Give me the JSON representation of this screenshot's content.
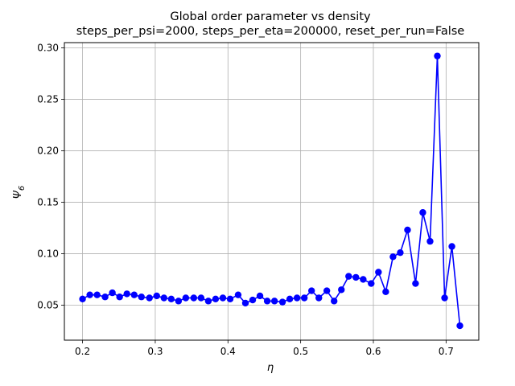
{
  "chart_data": {
    "type": "line",
    "title": "Global order parameter vs density",
    "subtitle": "steps_per_psi=2000, steps_per_eta=200000, reset_per_run=False",
    "xlabel": "η",
    "ylabel": "Ψ",
    "ylabel_subscript": "6",
    "xlim": [
      0.175,
      0.745
    ],
    "ylim": [
      0.016,
      0.305
    ],
    "xticks": [
      0.2,
      0.3,
      0.4,
      0.5,
      0.6,
      0.7
    ],
    "xtick_labels": [
      "0.2",
      "0.3",
      "0.4",
      "0.5",
      "0.6",
      "0.7"
    ],
    "yticks": [
      0.05,
      0.1,
      0.15,
      0.2,
      0.25,
      0.3
    ],
    "ytick_labels": [
      "0.05",
      "0.10",
      "0.15",
      "0.20",
      "0.25",
      "0.30"
    ],
    "grid": true,
    "color": "#0000ff",
    "series": [
      {
        "x": [
          0.2,
          0.21,
          0.22,
          0.231,
          0.241,
          0.251,
          0.261,
          0.271,
          0.281,
          0.292,
          0.302,
          0.312,
          0.322,
          0.332,
          0.342,
          0.353,
          0.363,
          0.373,
          0.383,
          0.393,
          0.403,
          0.414,
          0.424,
          0.434,
          0.444,
          0.454,
          0.464,
          0.475,
          0.485,
          0.495,
          0.505,
          0.515,
          0.525,
          0.536,
          0.546,
          0.556,
          0.566,
          0.576,
          0.586,
          0.597,
          0.607,
          0.617,
          0.627,
          0.637,
          0.647,
          0.658,
          0.668,
          0.678,
          0.688,
          0.698,
          0.708,
          0.719
        ],
        "values": [
          0.056,
          0.06,
          0.06,
          0.058,
          0.062,
          0.058,
          0.061,
          0.06,
          0.058,
          0.057,
          0.059,
          0.057,
          0.056,
          0.054,
          0.057,
          0.057,
          0.057,
          0.054,
          0.056,
          0.057,
          0.056,
          0.06,
          0.052,
          0.055,
          0.059,
          0.054,
          0.054,
          0.053,
          0.056,
          0.057,
          0.057,
          0.064,
          0.057,
          0.064,
          0.054,
          0.065,
          0.078,
          0.077,
          0.075,
          0.071,
          0.082,
          0.063,
          0.097,
          0.101,
          0.123,
          0.071,
          0.14,
          0.112,
          0.292,
          0.057,
          0.107,
          0.03
        ]
      }
    ]
  }
}
